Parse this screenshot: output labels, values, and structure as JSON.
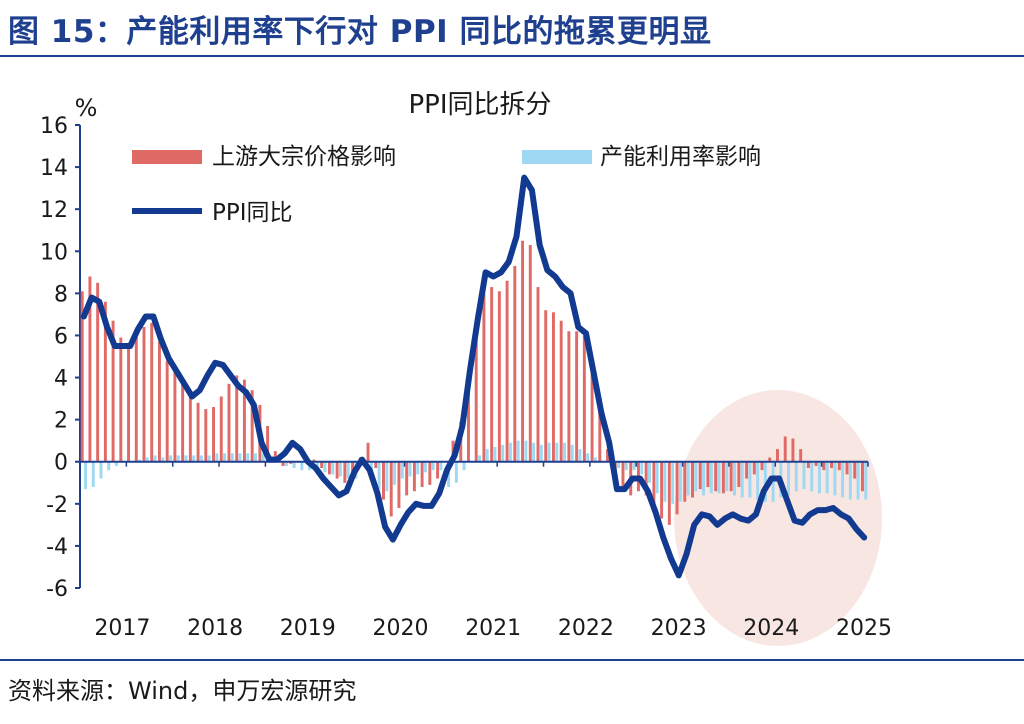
{
  "figure": {
    "title": "图 15：产能利用率下行对 PPI 同比的拖累更明显",
    "source": "资料来源：Wind，申万宏源研究"
  },
  "colors": {
    "commodity": "#e06a66",
    "capacity": "#9fd8f2",
    "ppi": "#123a91",
    "highlight": "#f6ded8",
    "axis": "#1f3f8f",
    "brand": "#1f3f8f"
  },
  "chart_data": {
    "type": "bar+line",
    "title": "PPI同比拆分",
    "ylabel": "%",
    "ylim": [
      -6,
      16
    ],
    "yticks": [
      -6,
      -4,
      -2,
      0,
      2,
      4,
      6,
      8,
      10,
      12,
      14,
      16
    ],
    "xticks": [
      "2017",
      "2018",
      "2019",
      "2020",
      "2021",
      "2022",
      "2023",
      "2024",
      "2025"
    ],
    "x_start": "2017-01",
    "months": 102,
    "grid": false,
    "legend_position": "top",
    "annotations": [
      "shaded ellipse over 2023H2-2025 highlighting negative capacity-utilization drag"
    ],
    "series": [
      {
        "name": "上游大宗价格影响",
        "kind": "bar",
        "values": [
          8.1,
          8.8,
          8.5,
          7.6,
          6.7,
          5.9,
          5.6,
          6.0,
          6.4,
          6.6,
          5.7,
          4.8,
          4.4,
          3.9,
          3.3,
          2.8,
          2.5,
          2.6,
          3.1,
          3.7,
          4.1,
          3.9,
          3.4,
          2.7,
          1.7,
          0.5,
          -0.2,
          -0.1,
          0.0,
          0.1,
          0.1,
          -0.3,
          -0.6,
          -0.8,
          -1.0,
          -0.8,
          0.2,
          0.9,
          -0.3,
          -1.8,
          -2.6,
          -2.2,
          -1.6,
          -1.4,
          -1.2,
          -1.1,
          -0.8,
          0.0,
          1.0,
          1.9,
          4.2,
          6.4,
          8.0,
          8.3,
          8.1,
          8.6,
          9.3,
          10.5,
          10.3,
          8.3,
          7.2,
          7.1,
          6.7,
          6.2,
          6.2,
          6.0,
          4.8,
          2.6,
          0.6,
          -1.0,
          -1.4,
          -1.6,
          -1.4,
          -1.6,
          -2.1,
          -2.7,
          -3.0,
          -2.5,
          -1.9,
          -1.7,
          -1.3,
          -1.2,
          -1.4,
          -1.5,
          -1.4,
          -1.2,
          -0.8,
          -0.6,
          -0.4,
          0.2,
          0.6,
          1.2,
          1.1,
          0.6,
          -0.3,
          -0.2,
          -0.4,
          -0.3,
          -0.4,
          -0.6,
          -0.8,
          -1.4
        ],
        "color": "#e06a66"
      },
      {
        "name": "产能利用率影响",
        "kind": "bar",
        "values": [
          -1.3,
          -1.2,
          -0.8,
          -0.4,
          -0.2,
          0.0,
          0.0,
          0.1,
          0.2,
          0.3,
          0.2,
          0.3,
          0.3,
          0.3,
          0.3,
          0.3,
          0.3,
          0.4,
          0.4,
          0.4,
          0.4,
          0.4,
          0.4,
          0.4,
          0.3,
          0.0,
          -0.2,
          -0.3,
          -0.4,
          -0.4,
          -0.4,
          -0.5,
          -0.6,
          -0.7,
          -0.8,
          -0.8,
          -0.2,
          -0.9,
          -1.3,
          -1.4,
          -1.1,
          -0.8,
          -0.7,
          -0.6,
          -0.5,
          -0.4,
          -0.4,
          -1.2,
          -1.0,
          -0.4,
          0.0,
          0.3,
          0.6,
          0.7,
          0.8,
          0.9,
          1.0,
          1.0,
          0.9,
          0.8,
          0.9,
          0.9,
          0.9,
          0.8,
          0.6,
          0.4,
          0.2,
          0.0,
          -0.2,
          -0.3,
          -0.4,
          -0.4,
          -0.6,
          -1.0,
          -1.5,
          -1.9,
          -2.0,
          -1.9,
          -1.6,
          -1.4,
          -1.6,
          -1.5,
          -1.5,
          -1.4,
          -1.6,
          -1.7,
          -1.7,
          -1.8,
          -1.9,
          -1.9,
          -1.7,
          -1.6,
          -1.4,
          -1.3,
          -1.4,
          -1.5,
          -1.5,
          -1.6,
          -1.7,
          -1.8,
          -1.8,
          -1.8
        ],
        "color": "#9fd8f2"
      },
      {
        "name": "PPI同比",
        "kind": "line",
        "values": [
          6.9,
          7.8,
          7.6,
          6.4,
          5.5,
          5.5,
          5.5,
          6.3,
          6.9,
          6.9,
          5.8,
          4.9,
          4.3,
          3.7,
          3.1,
          3.4,
          4.1,
          4.7,
          4.6,
          4.1,
          3.6,
          3.3,
          2.7,
          0.9,
          0.1,
          0.1,
          0.4,
          0.9,
          0.6,
          0.0,
          -0.3,
          -0.8,
          -1.2,
          -1.6,
          -1.4,
          -0.5,
          0.1,
          -0.4,
          -1.5,
          -3.1,
          -3.7,
          -3.0,
          -2.4,
          -2.0,
          -2.1,
          -2.1,
          -1.5,
          -0.4,
          0.3,
          1.7,
          4.4,
          6.8,
          9.0,
          8.8,
          9.0,
          9.5,
          10.7,
          13.5,
          12.9,
          10.3,
          9.1,
          8.8,
          8.3,
          8.0,
          6.4,
          6.1,
          4.2,
          2.3,
          0.9,
          -1.3,
          -1.3,
          -0.8,
          -0.8,
          -1.4,
          -2.4,
          -3.6,
          -4.6,
          -5.4,
          -4.4,
          -3.0,
          -2.5,
          -2.6,
          -3.0,
          -2.7,
          -2.5,
          -2.7,
          -2.8,
          -2.5,
          -1.4,
          -0.8,
          -0.8,
          -1.8,
          -2.8,
          -2.9,
          -2.5,
          -2.3,
          -2.3,
          -2.2,
          -2.5,
          -2.7,
          -3.2,
          -3.6
        ],
        "color": "#123a91"
      }
    ]
  }
}
